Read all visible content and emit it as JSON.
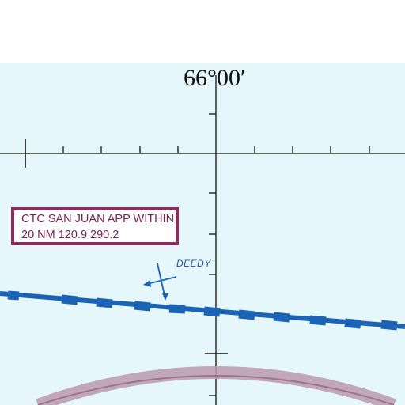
{
  "map": {
    "longitude_label": "66°00′",
    "colors": {
      "background": "#e6f7fb",
      "grid_ticks": "#111111",
      "airway": "#1a63b5",
      "ctc_box_border": "#8e2a5c",
      "ctc_text": "#7a2052",
      "fix_label": "#1b4e9b",
      "boundary_arc": "#a87a9a"
    },
    "ctc_notice": {
      "line1": "CTC SAN JUAN APP WITHIN",
      "line2": "20 NM 120.9  290.2"
    },
    "fix": {
      "name": "DEEDY",
      "icon": "fix-crosshair-arrow-icon"
    }
  }
}
